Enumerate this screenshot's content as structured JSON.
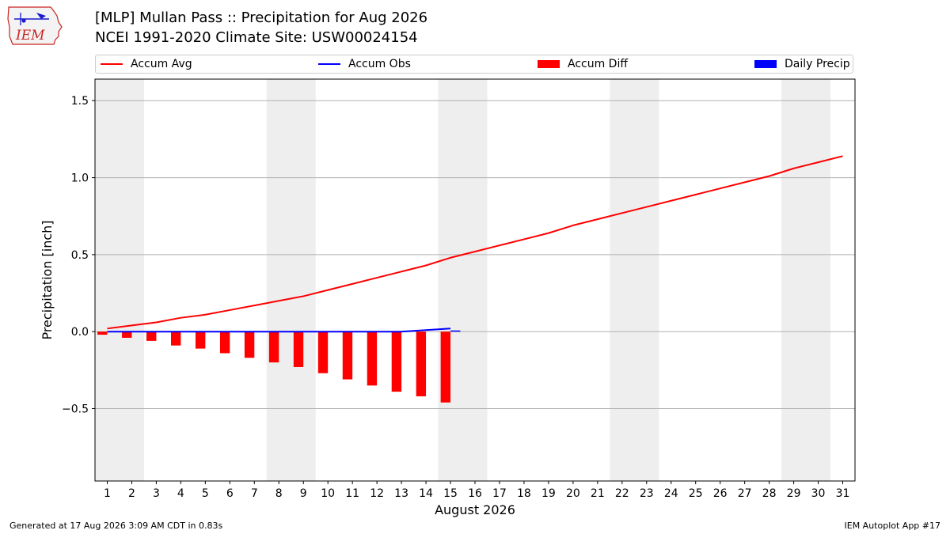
{
  "header": {
    "title_line1": "[MLP] Mullan Pass :: Precipitation for Aug 2026",
    "title_line2": "NCEI 1991-2020 Climate Site: USW00024154",
    "logo_text": "IEM"
  },
  "legend": {
    "items": [
      {
        "label": "Accum Avg",
        "kind": "line",
        "color": "#ff0000"
      },
      {
        "label": "Accum Obs",
        "kind": "line",
        "color": "#0000ff"
      },
      {
        "label": "Accum Diff",
        "kind": "bar",
        "color": "#ff0000"
      },
      {
        "label": "Daily Precip",
        "kind": "bar",
        "color": "#0000ff"
      }
    ]
  },
  "footer": {
    "generated": "Generated at 17 Aug 2026 3:09 AM CDT in 0.83s",
    "app": "IEM Autoplot App #17"
  },
  "chart_data": {
    "type": "line",
    "xlabel": "August 2026",
    "ylabel": "Precipitation [inch]",
    "xlim": [
      0.5,
      31.5
    ],
    "ylim": [
      -0.97,
      1.64
    ],
    "yticks": [
      -0.5,
      0.0,
      0.5,
      1.0,
      1.5
    ],
    "ytick_labels": [
      "−0.5",
      "0.0",
      "0.5",
      "1.0",
      "1.5"
    ],
    "xticks": [
      1,
      2,
      3,
      4,
      5,
      6,
      7,
      8,
      9,
      10,
      11,
      12,
      13,
      14,
      15,
      16,
      17,
      18,
      19,
      20,
      21,
      22,
      23,
      24,
      25,
      26,
      27,
      28,
      29,
      30,
      31
    ],
    "grid": "horizontal",
    "weekend_shading": [
      [
        0.5,
        2.5
      ],
      [
        7.5,
        9.5
      ],
      [
        14.5,
        16.5
      ],
      [
        21.5,
        23.5
      ],
      [
        28.5,
        30.5
      ]
    ],
    "accum_avg": {
      "name": "Accum Avg",
      "color": "#ff0000",
      "x": [
        1,
        2,
        3,
        4,
        5,
        6,
        7,
        8,
        9,
        10,
        11,
        12,
        13,
        14,
        15,
        16,
        17,
        18,
        19,
        20,
        21,
        22,
        23,
        24,
        25,
        26,
        27,
        28,
        29,
        30,
        31
      ],
      "values": [
        0.02,
        0.04,
        0.06,
        0.09,
        0.11,
        0.14,
        0.17,
        0.2,
        0.23,
        0.27,
        0.31,
        0.35,
        0.39,
        0.43,
        0.48,
        0.52,
        0.56,
        0.6,
        0.64,
        0.69,
        0.73,
        0.77,
        0.81,
        0.85,
        0.89,
        0.93,
        0.97,
        1.01,
        1.06,
        1.1,
        1.14
      ]
    },
    "accum_obs": {
      "name": "Accum Obs",
      "color": "#0000ff",
      "x": [
        1,
        2,
        3,
        4,
        5,
        6,
        7,
        8,
        9,
        10,
        11,
        12,
        13,
        14,
        15
      ],
      "values": [
        0,
        0,
        0,
        0,
        0,
        0,
        0,
        0,
        0,
        0,
        0,
        0,
        0,
        0.01,
        0.02
      ]
    },
    "accum_diff": {
      "name": "Accum Diff",
      "color": "#ff0000",
      "x": [
        0.8,
        1.8,
        2.8,
        3.8,
        4.8,
        5.8,
        6.8,
        7.8,
        8.8,
        9.8,
        10.8,
        11.8,
        12.8,
        13.8,
        14.8
      ],
      "values": [
        -0.02,
        -0.04,
        -0.06,
        -0.09,
        -0.11,
        -0.14,
        -0.17,
        -0.2,
        -0.23,
        -0.27,
        -0.31,
        -0.35,
        -0.39,
        -0.42,
        -0.46
      ]
    },
    "daily_precip": {
      "name": "Daily Precip",
      "color": "#0000ff",
      "x": [
        15.2
      ],
      "values": [
        0.005
      ]
    }
  }
}
